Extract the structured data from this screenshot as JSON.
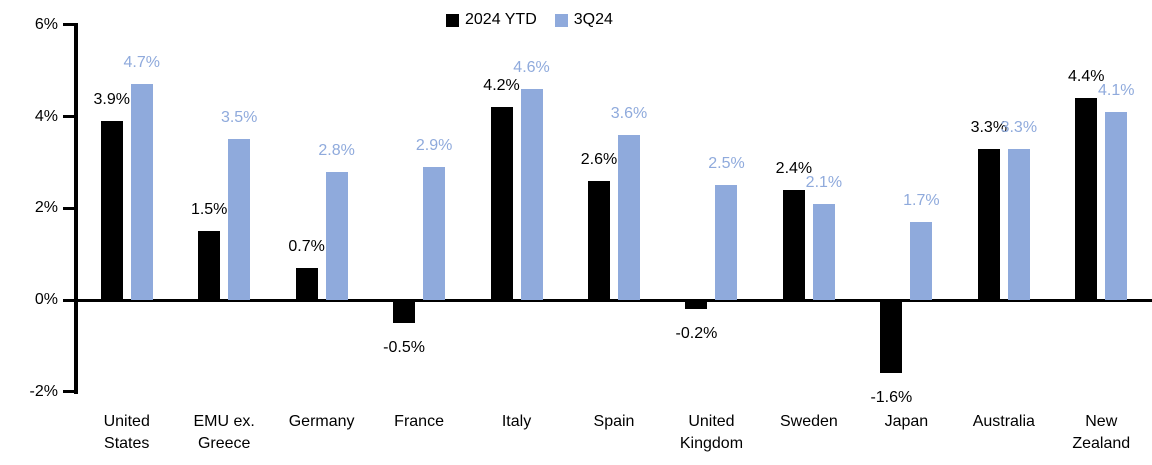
{
  "chart_data": {
    "type": "bar",
    "title": "",
    "xlabel": "",
    "ylabel": "",
    "categories": [
      "United States",
      "EMU ex. Greece",
      "Germany",
      "France",
      "Italy",
      "Spain",
      "United Kingdom",
      "Sweden",
      "Japan",
      "Australia",
      "New Zealand"
    ],
    "series": [
      {
        "name": "2024 YTD",
        "color": "#000000",
        "values": [
          3.9,
          1.5,
          0.7,
          -0.5,
          4.2,
          2.6,
          -0.2,
          2.4,
          -1.6,
          3.3,
          4.4
        ]
      },
      {
        "name": "3Q24",
        "color": "#8FAADC",
        "values": [
          4.7,
          3.5,
          2.8,
          2.9,
          4.6,
          3.6,
          2.5,
          2.1,
          1.7,
          3.3,
          4.1
        ]
      }
    ],
    "data_labels": [
      {
        "series": "2024 YTD",
        "labels": [
          "3.9%",
          "1.5%",
          "0.7%",
          "-0.5%",
          "4.2%",
          "2.6%",
          "-0.2%",
          "2.4%",
          "-1.6%",
          "3.3%",
          "4.4%"
        ]
      },
      {
        "series": "3Q24",
        "labels": [
          "4.7%",
          "3.5%",
          "2.8%",
          "2.9%",
          "4.6%",
          "3.6%",
          "2.5%",
          "2.1%",
          "1.7%",
          "3.3%",
          "4.1%"
        ]
      }
    ],
    "ylim": [
      -2,
      6
    ],
    "yticks": [
      {
        "label": "6%",
        "value": 6
      },
      {
        "label": "4%",
        "value": 4
      },
      {
        "label": "2%",
        "value": 2
      },
      {
        "label": "0%",
        "value": 0
      },
      {
        "label": "-2%",
        "value": -2
      }
    ],
    "grid": false,
    "legend_position": "top-center"
  },
  "colors": {
    "axis": "#000000",
    "background": "#FFFFFF",
    "series_2024_ytd": "#000000",
    "series_3q24": "#8FAADC"
  }
}
